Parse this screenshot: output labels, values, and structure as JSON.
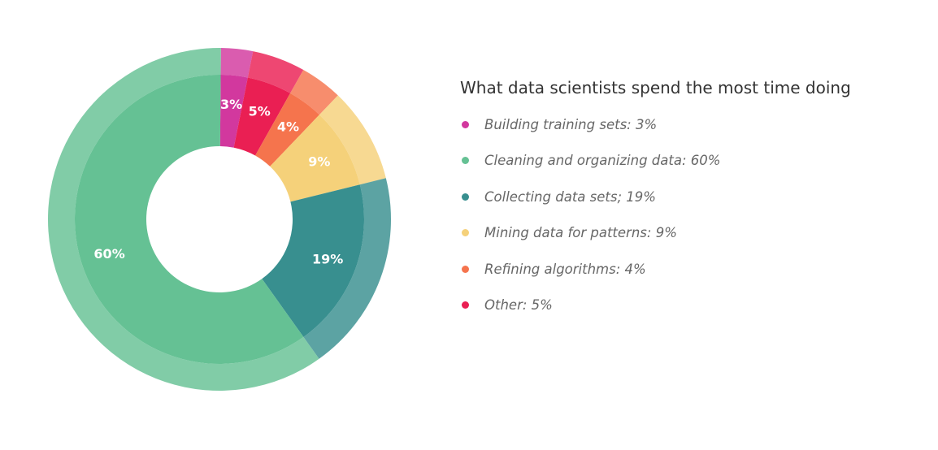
{
  "chart_data": {
    "type": "pie",
    "title": "What data scientists spend the most time doing",
    "slices": [
      {
        "label": "Building training sets",
        "value": 3,
        "value_label": "3%",
        "legend": "Building training sets: 3%",
        "color": "#d2389e"
      },
      {
        "label": "Other",
        "value": 5,
        "value_label": "5%",
        "legend": "Other: 5%",
        "color": "#ea1f53"
      },
      {
        "label": "Refining algorithms",
        "value": 4,
        "value_label": "4%",
        "legend": "Refining algorithms: 4%",
        "color": "#f5744d"
      },
      {
        "label": "Mining data for patterns",
        "value": 9,
        "value_label": "9%",
        "legend": "Mining data for patterns: 9%",
        "color": "#f5d17a"
      },
      {
        "label": "Collecting data sets",
        "value": 19,
        "value_label": "19%",
        "legend": "Collecting data sets; 19%",
        "color": "#388f8f"
      },
      {
        "label": "Cleaning and organizing data",
        "value": 60,
        "value_label": "60%",
        "legend": "Cleaning and organizing data: 60%",
        "color": "#65c194"
      }
    ],
    "legend_order": [
      "Building training sets",
      "Cleaning and organizing data",
      "Collecting data sets",
      "Mining data for patterns",
      "Refining algorithms",
      "Other"
    ],
    "legend_placement": "right",
    "donut": true
  }
}
